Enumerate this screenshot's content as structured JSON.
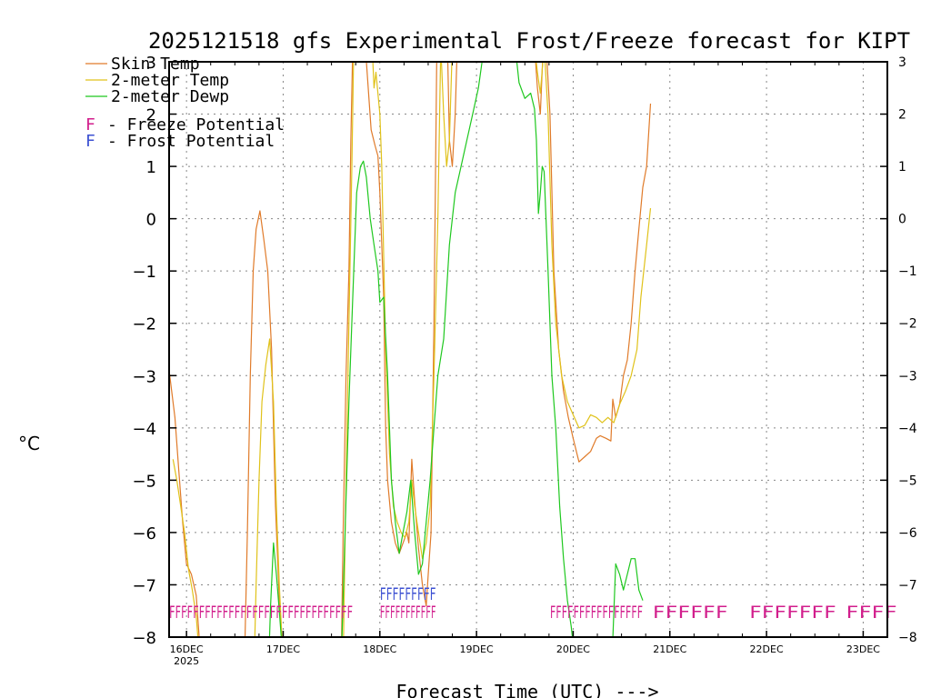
{
  "colors": {
    "skin": "#e07b2a",
    "temp2m": "#e0c21a",
    "dewp2m": "#1fc81f",
    "freeze": "#d21e8c",
    "frost": "#3c50d2",
    "grid": "#888888"
  },
  "chart_data": {
    "type": "line",
    "title": "2025121518 gfs Experimental Frost/Freeze forecast for KIPT",
    "xlabel": "Forecast Time (UTC) --->",
    "ylabel": "°C",
    "ylim": [
      -8,
      3
    ],
    "xlim": [
      -0.18,
      7.25
    ],
    "yticks": [
      3,
      2,
      1,
      0,
      -1,
      -2,
      -3,
      -4,
      -5,
      -6,
      -7,
      -8
    ],
    "ytick_labels": [
      "3",
      "2",
      "1",
      "0",
      "−1",
      "−2",
      "−3",
      "−4",
      "−5",
      "−6",
      "−7",
      "−8"
    ],
    "xticks": [
      {
        "x": 0,
        "label": "16DEC",
        "sub": "2025"
      },
      {
        "x": 1,
        "label": "17DEC",
        "sub": ""
      },
      {
        "x": 2,
        "label": "18DEC",
        "sub": ""
      },
      {
        "x": 3,
        "label": "19DEC",
        "sub": ""
      },
      {
        "x": 4,
        "label": "20DEC",
        "sub": ""
      },
      {
        "x": 5,
        "label": "21DEC",
        "sub": ""
      },
      {
        "x": 6,
        "label": "22DEC",
        "sub": ""
      },
      {
        "x": 7,
        "label": "23DEC",
        "sub": ""
      }
    ],
    "x_units": "days since 16DEC 00Z",
    "series": [
      {
        "name": "Skin Temp",
        "color_key": "skin",
        "points": [
          [
            -0.18,
            -2.9
          ],
          [
            -0.12,
            -3.8
          ],
          [
            -0.08,
            -4.8
          ],
          [
            -0.04,
            -5.8
          ],
          [
            0,
            -6.6
          ],
          [
            0.05,
            -6.8
          ],
          [
            0.1,
            -7.2
          ],
          [
            0.15,
            -8.5
          ],
          [
            0.6,
            -8.5
          ],
          [
            0.63,
            -6.0
          ],
          [
            0.66,
            -3.0
          ],
          [
            0.69,
            -1.0
          ],
          [
            0.72,
            -0.2
          ],
          [
            0.76,
            0.15
          ],
          [
            0.8,
            -0.4
          ],
          [
            0.84,
            -1.0
          ],
          [
            0.88,
            -2.5
          ],
          [
            0.92,
            -5.5
          ],
          [
            0.96,
            -7.3
          ],
          [
            1.0,
            -8.5
          ],
          [
            1.6,
            -8.5
          ],
          [
            1.62,
            -6.0
          ],
          [
            1.65,
            -3.0
          ],
          [
            1.68,
            -1.0
          ],
          [
            1.7,
            1.5
          ],
          [
            1.72,
            3.3
          ],
          [
            1.85,
            3.3
          ],
          [
            1.88,
            2.5
          ],
          [
            1.91,
            1.7
          ],
          [
            1.95,
            1.4
          ],
          [
            1.98,
            1.2
          ],
          [
            2.0,
            0.5
          ],
          [
            2.04,
            -1.5
          ],
          [
            2.06,
            -4.0
          ],
          [
            2.08,
            -5.0
          ],
          [
            2.12,
            -5.8
          ],
          [
            2.16,
            -6.2
          ],
          [
            2.2,
            -6.4
          ],
          [
            2.24,
            -6.2
          ],
          [
            2.28,
            -6.0
          ],
          [
            2.3,
            -6.2
          ],
          [
            2.33,
            -4.6
          ],
          [
            2.36,
            -5.4
          ],
          [
            2.4,
            -6.3
          ],
          [
            2.44,
            -7.0
          ],
          [
            2.48,
            -7.4
          ],
          [
            2.5,
            -6.8
          ],
          [
            2.53,
            -6.0
          ],
          [
            2.56,
            -2.0
          ],
          [
            2.59,
            3.3
          ],
          [
            2.7,
            3.3
          ],
          [
            2.72,
            1.5
          ],
          [
            2.75,
            1.0
          ],
          [
            2.78,
            2.0
          ],
          [
            2.8,
            3.3
          ],
          [
            3.6,
            3.3
          ],
          [
            3.63,
            2.5
          ],
          [
            3.66,
            2.0
          ],
          [
            3.69,
            3.3
          ],
          [
            3.72,
            3.3
          ],
          [
            3.76,
            2.0
          ],
          [
            3.8,
            -1.0
          ],
          [
            3.85,
            -2.5
          ],
          [
            3.9,
            -3.3
          ],
          [
            3.95,
            -3.8
          ],
          [
            4.0,
            -4.2
          ],
          [
            4.06,
            -4.65
          ],
          [
            4.12,
            -4.55
          ],
          [
            4.18,
            -4.45
          ],
          [
            4.24,
            -4.2
          ],
          [
            4.28,
            -4.15
          ],
          [
            4.34,
            -4.2
          ],
          [
            4.39,
            -4.25
          ],
          [
            4.41,
            -3.45
          ],
          [
            4.44,
            -3.8
          ],
          [
            4.48,
            -3.55
          ],
          [
            4.52,
            -3.0
          ],
          [
            4.56,
            -2.7
          ],
          [
            4.6,
            -2.0
          ],
          [
            4.64,
            -1.0
          ],
          [
            4.68,
            -0.2
          ],
          [
            4.72,
            0.6
          ],
          [
            4.76,
            1.0
          ],
          [
            4.8,
            2.2
          ]
        ]
      },
      {
        "name": "2-meter Temp",
        "color_key": "temp2m",
        "points": [
          [
            -0.14,
            -4.6
          ],
          [
            -0.1,
            -5.0
          ],
          [
            -0.06,
            -5.5
          ],
          [
            -0.02,
            -6.0
          ],
          [
            0.02,
            -6.7
          ],
          [
            0.06,
            -7.1
          ],
          [
            0.1,
            -7.6
          ],
          [
            0.14,
            -8.5
          ],
          [
            0.7,
            -8.5
          ],
          [
            0.72,
            -7.0
          ],
          [
            0.75,
            -5.0
          ],
          [
            0.78,
            -3.5
          ],
          [
            0.82,
            -2.8
          ],
          [
            0.86,
            -2.3
          ],
          [
            0.9,
            -3.5
          ],
          [
            0.93,
            -5.5
          ],
          [
            0.96,
            -7.0
          ],
          [
            1.0,
            -8.5
          ],
          [
            1.62,
            -8.5
          ],
          [
            1.65,
            -5.0
          ],
          [
            1.68,
            -2.0
          ],
          [
            1.71,
            1.0
          ],
          [
            1.73,
            3.3
          ],
          [
            1.92,
            3.3
          ],
          [
            1.94,
            2.5
          ],
          [
            1.96,
            2.8
          ],
          [
            2.0,
            2.0
          ],
          [
            2.02,
            1.0
          ],
          [
            2.06,
            -2.5
          ],
          [
            2.1,
            -4.5
          ],
          [
            2.14,
            -5.5
          ],
          [
            2.18,
            -5.8
          ],
          [
            2.22,
            -6.0
          ],
          [
            2.26,
            -6.1
          ],
          [
            2.3,
            -5.8
          ],
          [
            2.33,
            -5.0
          ],
          [
            2.36,
            -5.5
          ],
          [
            2.4,
            -6.0
          ],
          [
            2.44,
            -6.5
          ],
          [
            2.48,
            -6.2
          ],
          [
            2.52,
            -5.5
          ],
          [
            2.56,
            -3.0
          ],
          [
            2.6,
            0.0
          ],
          [
            2.63,
            3.3
          ],
          [
            2.66,
            2.0
          ],
          [
            2.69,
            1.0
          ],
          [
            2.72,
            1.5
          ],
          [
            2.75,
            3.3
          ],
          [
            3.6,
            3.3
          ],
          [
            3.63,
            2.8
          ],
          [
            3.66,
            2.4
          ],
          [
            3.7,
            3.3
          ],
          [
            3.74,
            2.0
          ],
          [
            3.78,
            -0.5
          ],
          [
            3.82,
            -2.0
          ],
          [
            3.88,
            -3.0
          ],
          [
            3.94,
            -3.5
          ],
          [
            4.0,
            -3.75
          ],
          [
            4.06,
            -4.0
          ],
          [
            4.12,
            -3.95
          ],
          [
            4.18,
            -3.75
          ],
          [
            4.24,
            -3.8
          ],
          [
            4.3,
            -3.9
          ],
          [
            4.36,
            -3.8
          ],
          [
            4.42,
            -3.9
          ],
          [
            4.48,
            -3.55
          ],
          [
            4.54,
            -3.3
          ],
          [
            4.6,
            -3.0
          ],
          [
            4.66,
            -2.5
          ],
          [
            4.7,
            -1.5
          ],
          [
            4.76,
            -0.5
          ],
          [
            4.8,
            0.2
          ]
        ]
      },
      {
        "name": "2-meter Dewp",
        "color_key": "dewp2m",
        "points": [
          [
            0.85,
            -8.5
          ],
          [
            0.87,
            -7.4
          ],
          [
            0.9,
            -6.2
          ],
          [
            0.93,
            -6.8
          ],
          [
            0.96,
            -7.5
          ],
          [
            1.0,
            -8.5
          ],
          [
            1.6,
            -8.5
          ],
          [
            1.64,
            -6.0
          ],
          [
            1.68,
            -3.5
          ],
          [
            1.72,
            -1.5
          ],
          [
            1.76,
            0.5
          ],
          [
            1.8,
            1.0
          ],
          [
            1.83,
            1.1
          ],
          [
            1.86,
            0.8
          ],
          [
            1.9,
            0.0
          ],
          [
            1.94,
            -0.5
          ],
          [
            1.98,
            -1.0
          ],
          [
            2.0,
            -1.6
          ],
          [
            2.04,
            -1.5
          ],
          [
            2.08,
            -3.0
          ],
          [
            2.12,
            -5.0
          ],
          [
            2.16,
            -5.8
          ],
          [
            2.2,
            -6.4
          ],
          [
            2.24,
            -6.0
          ],
          [
            2.28,
            -5.6
          ],
          [
            2.32,
            -5.0
          ],
          [
            2.36,
            -6.0
          ],
          [
            2.4,
            -6.8
          ],
          [
            2.44,
            -6.6
          ],
          [
            2.48,
            -5.8
          ],
          [
            2.52,
            -5.0
          ],
          [
            2.56,
            -4.0
          ],
          [
            2.6,
            -3.0
          ],
          [
            2.66,
            -2.3
          ],
          [
            2.72,
            -0.5
          ],
          [
            2.78,
            0.5
          ],
          [
            2.84,
            1.0
          ],
          [
            2.9,
            1.5
          ],
          [
            2.96,
            2.0
          ],
          [
            3.02,
            2.5
          ],
          [
            3.08,
            3.3
          ],
          [
            3.4,
            3.3
          ],
          [
            3.44,
            2.6
          ],
          [
            3.5,
            2.3
          ],
          [
            3.56,
            2.4
          ],
          [
            3.6,
            2.1
          ],
          [
            3.62,
            1.5
          ],
          [
            3.64,
            0.1
          ],
          [
            3.66,
            0.5
          ],
          [
            3.68,
            1.0
          ],
          [
            3.7,
            0.9
          ],
          [
            3.74,
            -1.0
          ],
          [
            3.78,
            -3.0
          ],
          [
            3.82,
            -4.0
          ],
          [
            3.86,
            -5.5
          ],
          [
            3.9,
            -6.5
          ],
          [
            3.94,
            -7.3
          ],
          [
            3.98,
            -7.8
          ],
          [
            4.02,
            -8.5
          ],
          [
            4.4,
            -8.5
          ],
          [
            4.44,
            -6.6
          ],
          [
            4.48,
            -6.8
          ],
          [
            4.52,
            -7.1
          ],
          [
            4.56,
            -6.8
          ],
          [
            4.6,
            -6.5
          ],
          [
            4.64,
            -6.5
          ],
          [
            4.68,
            -7.1
          ],
          [
            4.72,
            -7.3
          ]
        ]
      }
    ],
    "freeze_row": [
      {
        "text": "FFFFFFFFFFFFFFFFFFFFFFFFFFFFFFF",
        "x0": -0.18,
        "x1": 1.72
      },
      {
        "text": "FFFFFFFFFFF",
        "x0": 2.0,
        "x1": 2.58
      },
      {
        "text": "FFFFFFFFFFFFFFFF",
        "x0": 3.76,
        "x1": 4.72
      },
      {
        "text": "FFFFFF",
        "x0": 4.82,
        "x1": 5.6
      },
      {
        "text": "FFFFFFF",
        "x0": 5.82,
        "x1": 6.72
      },
      {
        "text": "FFFF",
        "x0": 6.82,
        "x1": 7.35
      }
    ],
    "frost_row": [
      {
        "text": "FFFFFFFFF",
        "x0": 2.0,
        "x1": 2.58
      }
    ],
    "legend": {
      "placement": "top-left",
      "lines": [
        {
          "label": "Skin Temp",
          "color_key": "skin"
        },
        {
          "label": "2-meter Temp",
          "color_key": "temp2m"
        },
        {
          "label": "2-meter Dewp",
          "color_key": "dewp2m"
        }
      ],
      "symbols": [
        {
          "symbol": "F",
          "label": "- Freeze Potential",
          "color_key": "freeze"
        },
        {
          "symbol": "F",
          "label": "- Frost Potential",
          "color_key": "frost"
        }
      ]
    }
  }
}
